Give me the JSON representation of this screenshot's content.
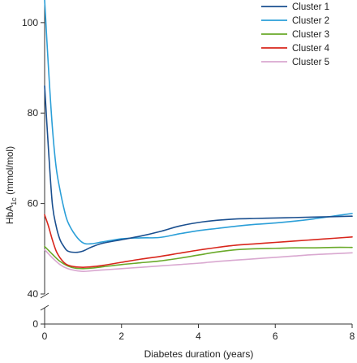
{
  "chart_data": {
    "type": "line",
    "title": "",
    "xlabel": "Diabetes duration (years)",
    "ylabel_main": "HbA",
    "ylabel_sub": "1c",
    "ylabel_unit": " (mmol/mol)",
    "xlim": [
      0,
      8
    ],
    "ylim": [
      40,
      105
    ],
    "y_axis_break": true,
    "x_ticks": [
      0,
      2,
      4,
      6,
      8
    ],
    "x_tick_labels": [
      "0",
      "2",
      "4",
      "6",
      "8"
    ],
    "y_ticks": [
      40,
      60,
      80,
      100
    ],
    "y_tick_labels": [
      "40",
      "60",
      "80",
      "100"
    ],
    "y_zero_label": "0",
    "grid": false,
    "legend_position": "top-right",
    "series": [
      {
        "name": "Cluster 1",
        "color": "#1a4f8f",
        "points": [
          [
            0,
            86
          ],
          [
            0.1,
            72
          ],
          [
            0.2,
            60
          ],
          [
            0.3,
            55
          ],
          [
            0.4,
            52
          ],
          [
            0.5,
            50.5
          ],
          [
            0.6,
            49.5
          ],
          [
            0.8,
            49.2
          ],
          [
            1,
            49.5
          ],
          [
            1.2,
            50.3
          ],
          [
            1.5,
            51.2
          ],
          [
            2,
            52
          ],
          [
            2.5,
            52.8
          ],
          [
            3,
            53.8
          ],
          [
            3.5,
            55
          ],
          [
            4,
            55.8
          ],
          [
            4.5,
            56.3
          ],
          [
            5,
            56.6
          ],
          [
            5.5,
            56.7
          ],
          [
            6,
            56.8
          ],
          [
            6.5,
            56.9
          ],
          [
            7,
            57
          ],
          [
            7.5,
            57.1
          ],
          [
            8,
            57.2
          ]
        ]
      },
      {
        "name": "Cluster 2",
        "color": "#2b9fd8",
        "points": [
          [
            0,
            105
          ],
          [
            0.1,
            90
          ],
          [
            0.2,
            77
          ],
          [
            0.3,
            68
          ],
          [
            0.4,
            63
          ],
          [
            0.5,
            59
          ],
          [
            0.6,
            56
          ],
          [
            0.8,
            53
          ],
          [
            1,
            51.3
          ],
          [
            1.2,
            51.1
          ],
          [
            1.5,
            51.5
          ],
          [
            2,
            52.2
          ],
          [
            2.5,
            52.4
          ],
          [
            3,
            52.5
          ],
          [
            3.5,
            53.3
          ],
          [
            4,
            54
          ],
          [
            4.5,
            54.5
          ],
          [
            5,
            55
          ],
          [
            5.5,
            55.4
          ],
          [
            6,
            55.7
          ],
          [
            6.5,
            56.1
          ],
          [
            7,
            56.6
          ],
          [
            7.5,
            57.2
          ],
          [
            8,
            57.8
          ]
        ]
      },
      {
        "name": "Cluster 3",
        "color": "#6aaa2a",
        "points": [
          [
            0,
            50.5
          ],
          [
            0.2,
            48.8
          ],
          [
            0.4,
            47.2
          ],
          [
            0.6,
            46.2
          ],
          [
            0.8,
            45.7
          ],
          [
            1,
            45.6
          ],
          [
            1.2,
            45.7
          ],
          [
            1.5,
            46
          ],
          [
            2,
            46.5
          ],
          [
            2.5,
            46.9
          ],
          [
            3,
            47.3
          ],
          [
            3.5,
            47.9
          ],
          [
            4,
            48.6
          ],
          [
            4.5,
            49.3
          ],
          [
            5,
            49.8
          ],
          [
            5.5,
            50
          ],
          [
            6,
            50.1
          ],
          [
            6.5,
            50.2
          ],
          [
            7,
            50.2
          ],
          [
            7.5,
            50.3
          ],
          [
            8,
            50.3
          ]
        ]
      },
      {
        "name": "Cluster 4",
        "color": "#d8261c",
        "points": [
          [
            0,
            57.5
          ],
          [
            0.1,
            55
          ],
          [
            0.2,
            52
          ],
          [
            0.3,
            49.5
          ],
          [
            0.4,
            48
          ],
          [
            0.5,
            47
          ],
          [
            0.6,
            46.4
          ],
          [
            0.8,
            46
          ],
          [
            1,
            45.9
          ],
          [
            1.2,
            46
          ],
          [
            1.5,
            46.3
          ],
          [
            2,
            47
          ],
          [
            2.5,
            47.7
          ],
          [
            3,
            48.3
          ],
          [
            3.5,
            49
          ],
          [
            4,
            49.7
          ],
          [
            4.5,
            50.3
          ],
          [
            5,
            50.8
          ],
          [
            5.5,
            51.1
          ],
          [
            6,
            51.4
          ],
          [
            6.5,
            51.7
          ],
          [
            7,
            52
          ],
          [
            7.5,
            52.3
          ],
          [
            8,
            52.6
          ]
        ]
      },
      {
        "name": "Cluster 5",
        "color": "#d9a8d0",
        "points": [
          [
            0,
            49.8
          ],
          [
            0.2,
            48
          ],
          [
            0.4,
            46.5
          ],
          [
            0.6,
            45.6
          ],
          [
            0.8,
            45.2
          ],
          [
            1,
            45
          ],
          [
            1.2,
            45.1
          ],
          [
            1.5,
            45.3
          ],
          [
            2,
            45.6
          ],
          [
            2.5,
            45.9
          ],
          [
            3,
            46.2
          ],
          [
            3.5,
            46.5
          ],
          [
            4,
            46.8
          ],
          [
            4.5,
            47.2
          ],
          [
            5,
            47.5
          ],
          [
            5.5,
            47.8
          ],
          [
            6,
            48.1
          ],
          [
            6.5,
            48.4
          ],
          [
            7,
            48.7
          ],
          [
            7.5,
            48.9
          ],
          [
            8,
            49.1
          ]
        ]
      }
    ]
  }
}
